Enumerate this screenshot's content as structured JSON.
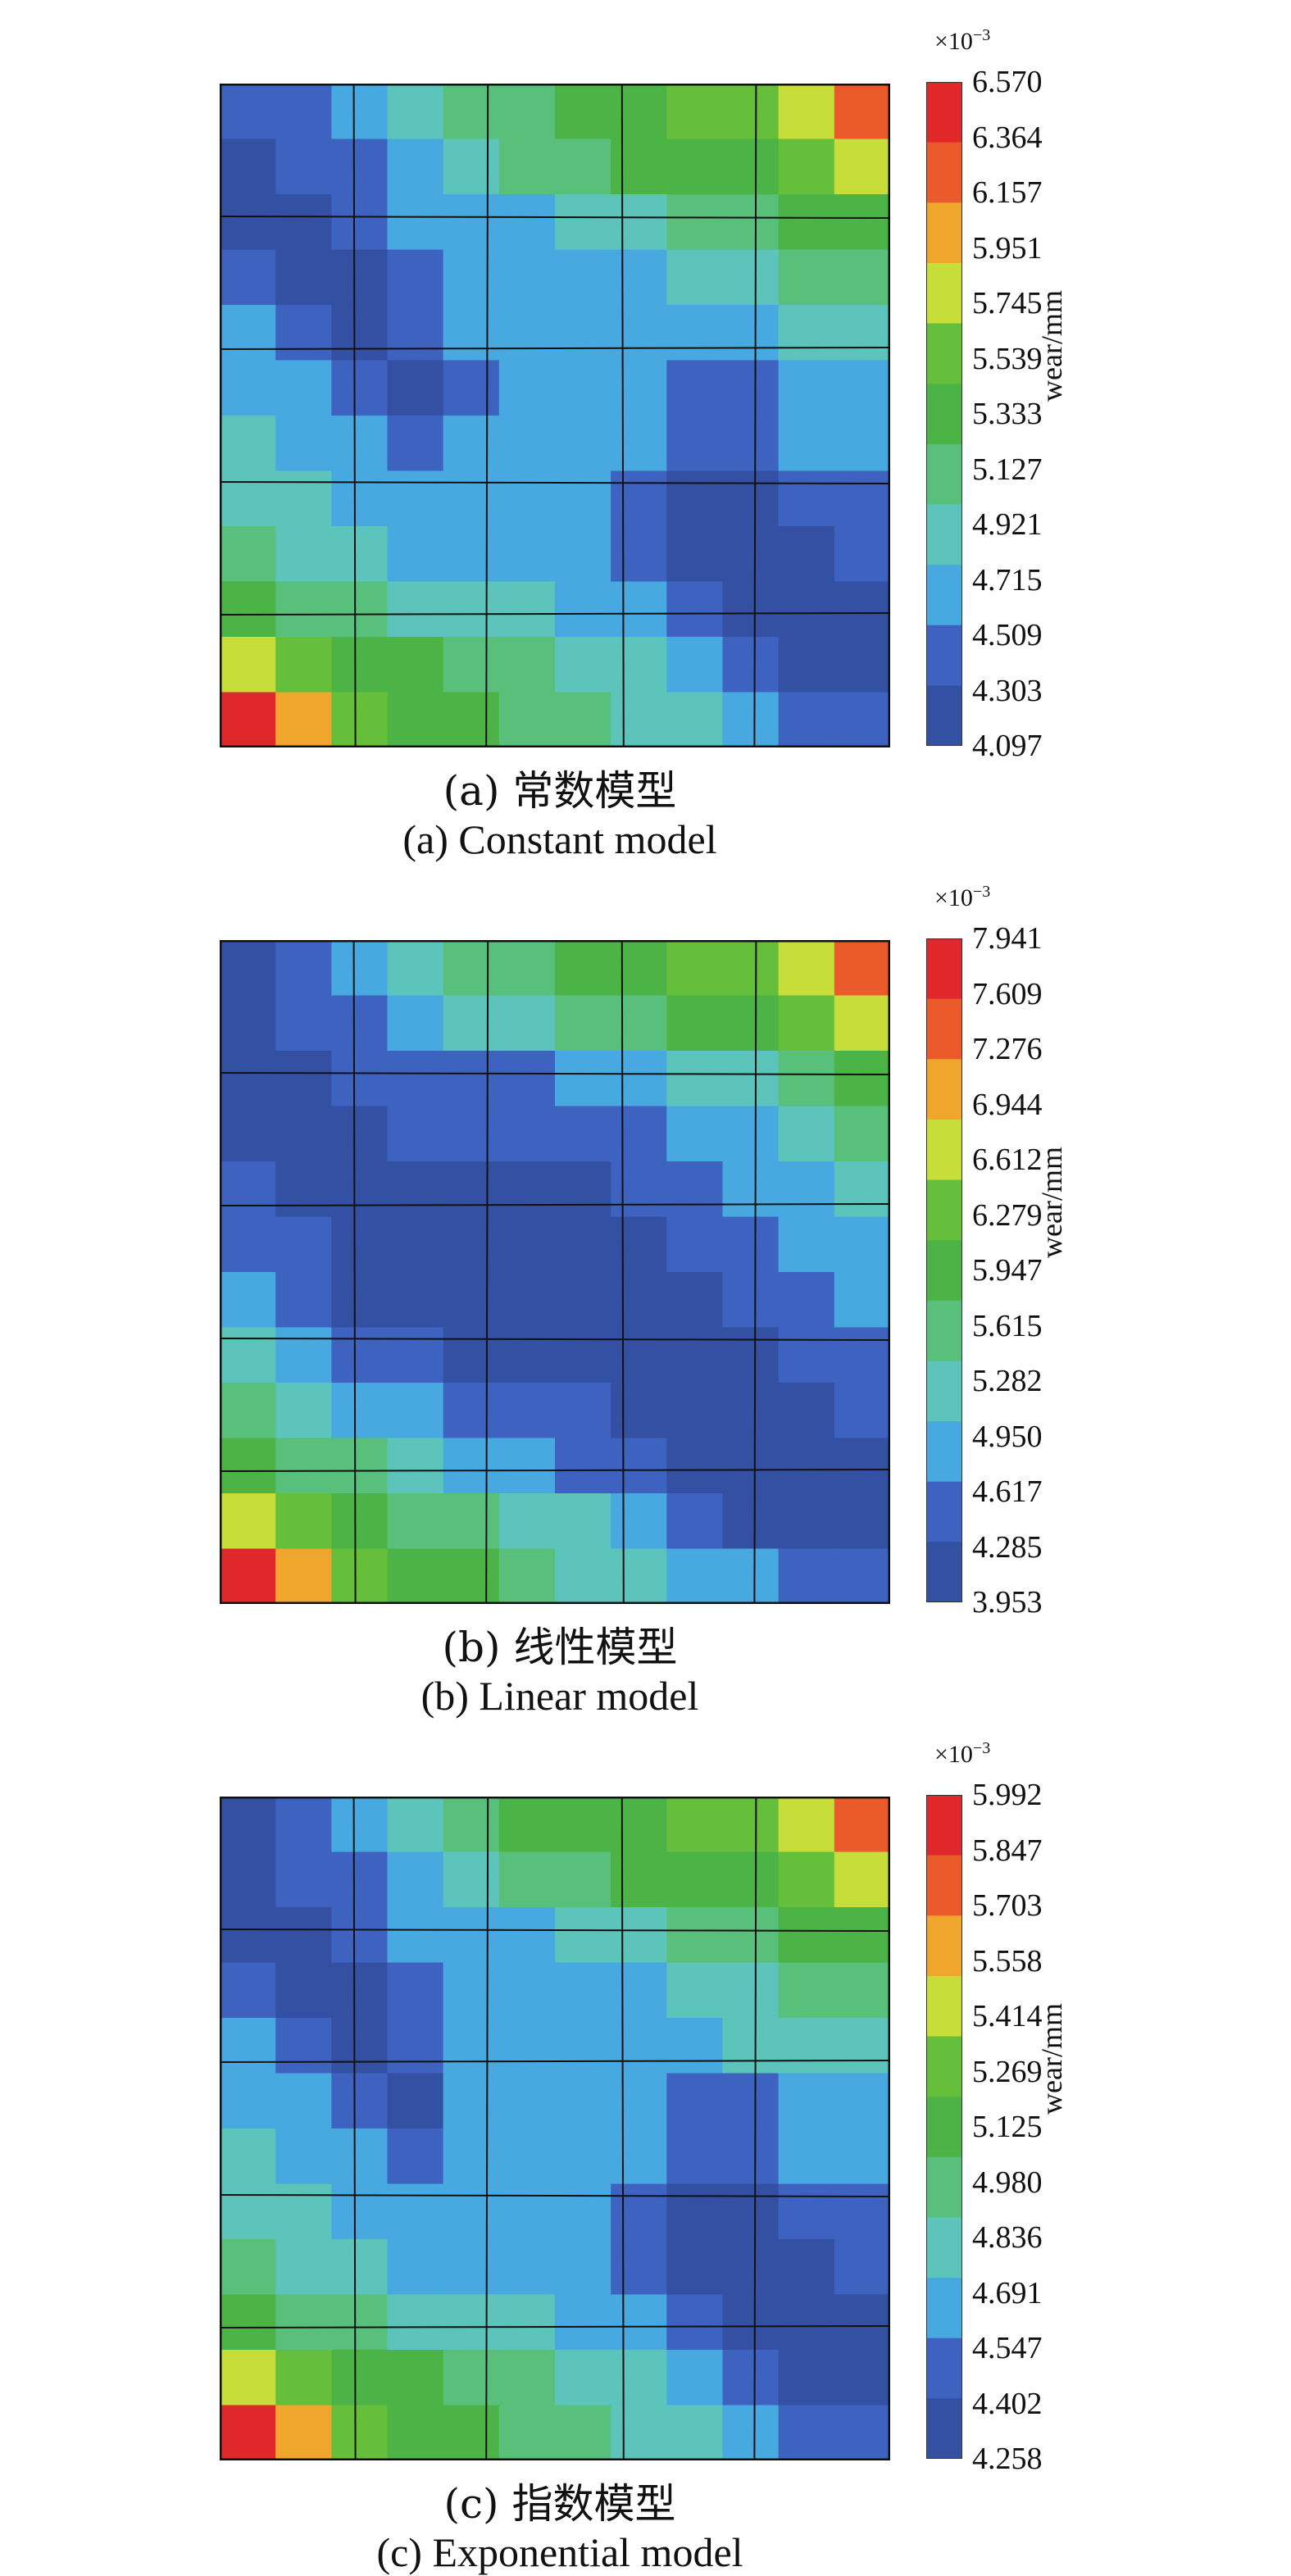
{
  "colors": [
    "#3350a3",
    "#3d62c0",
    "#47a9e0",
    "#5dc4bb",
    "#58c07a",
    "#4cb446",
    "#66bf3a",
    "#c7dd3a",
    "#f0a52c",
    "#ea5a2b",
    "#e0282b"
  ],
  "chart_data": [
    {
      "type": "heatmap",
      "caption_cn": "(a) 常数模型",
      "caption_en": "(a) Constant model",
      "colorbar_label": "wear/mm",
      "scale_exponent": "×10",
      "scale_power": "−3",
      "ticks": [
        "6.570",
        "6.364",
        "6.157",
        "5.951",
        "5.745",
        "5.539",
        "5.333",
        "5.127",
        "4.921",
        "4.715",
        "4.509",
        "4.303",
        "4.097"
      ],
      "grid": [
        [
          1,
          1,
          2,
          3,
          4,
          4,
          5,
          5,
          6,
          6,
          7,
          9
        ],
        [
          0,
          1,
          1,
          2,
          3,
          4,
          4,
          5,
          5,
          5,
          6,
          7
        ],
        [
          0,
          0,
          1,
          2,
          2,
          2,
          3,
          3,
          4,
          4,
          5,
          5
        ],
        [
          1,
          0,
          0,
          1,
          2,
          2,
          2,
          2,
          3,
          3,
          4,
          4
        ],
        [
          2,
          1,
          0,
          1,
          2,
          2,
          2,
          2,
          2,
          2,
          3,
          3
        ],
        [
          2,
          2,
          1,
          0,
          1,
          2,
          2,
          2,
          1,
          1,
          2,
          2
        ],
        [
          3,
          2,
          2,
          1,
          2,
          2,
          2,
          2,
          1,
          1,
          2,
          2
        ],
        [
          3,
          3,
          2,
          2,
          2,
          2,
          2,
          1,
          0,
          0,
          1,
          1
        ],
        [
          4,
          3,
          3,
          2,
          2,
          2,
          2,
          1,
          0,
          0,
          0,
          1
        ],
        [
          5,
          4,
          4,
          3,
          3,
          3,
          2,
          2,
          1,
          0,
          0,
          0
        ],
        [
          7,
          6,
          5,
          5,
          4,
          4,
          3,
          3,
          2,
          1,
          0,
          0
        ],
        [
          10,
          8,
          6,
          5,
          5,
          4,
          4,
          3,
          3,
          2,
          1,
          1
        ]
      ]
    },
    {
      "type": "heatmap",
      "caption_cn": "(b) 线性模型",
      "caption_en": "(b) Linear model",
      "colorbar_label": "wear/mm",
      "scale_exponent": "×10",
      "scale_power": "−3",
      "ticks": [
        "7.941",
        "7.609",
        "7.276",
        "6.944",
        "6.612",
        "6.279",
        "5.947",
        "5.615",
        "5.282",
        "4.950",
        "4.617",
        "4.285",
        "3.953"
      ],
      "grid": [
        [
          0,
          1,
          2,
          3,
          4,
          4,
          5,
          5,
          6,
          6,
          7,
          9
        ],
        [
          0,
          1,
          1,
          2,
          3,
          3,
          4,
          4,
          5,
          5,
          6,
          7
        ],
        [
          0,
          0,
          1,
          1,
          1,
          1,
          2,
          2,
          3,
          3,
          4,
          5
        ],
        [
          0,
          0,
          0,
          1,
          1,
          1,
          1,
          1,
          2,
          2,
          3,
          4
        ],
        [
          1,
          0,
          0,
          0,
          0,
          0,
          0,
          1,
          1,
          2,
          2,
          3
        ],
        [
          1,
          1,
          0,
          0,
          0,
          0,
          0,
          0,
          1,
          1,
          2,
          2
        ],
        [
          2,
          1,
          0,
          0,
          0,
          0,
          0,
          0,
          0,
          1,
          1,
          2
        ],
        [
          3,
          2,
          1,
          1,
          0,
          0,
          0,
          0,
          0,
          0,
          1,
          1
        ],
        [
          4,
          3,
          2,
          2,
          1,
          1,
          1,
          0,
          0,
          0,
          0,
          1
        ],
        [
          5,
          4,
          4,
          3,
          2,
          2,
          1,
          1,
          0,
          0,
          0,
          0
        ],
        [
          7,
          6,
          5,
          4,
          4,
          3,
          3,
          2,
          1,
          0,
          0,
          0
        ],
        [
          10,
          8,
          6,
          5,
          5,
          4,
          3,
          3,
          2,
          2,
          1,
          1
        ]
      ]
    },
    {
      "type": "heatmap",
      "caption_cn": "(c) 指数模型",
      "caption_en": "(c) Exponential model",
      "colorbar_label": "wear/mm",
      "scale_exponent": "×10",
      "scale_power": "−3",
      "ticks": [
        "5.992",
        "5.847",
        "5.703",
        "5.558",
        "5.414",
        "5.269",
        "5.125",
        "4.980",
        "4.836",
        "4.691",
        "4.547",
        "4.402",
        "4.258"
      ],
      "grid": [
        [
          0,
          1,
          2,
          3,
          4,
          5,
          5,
          5,
          6,
          6,
          7,
          9
        ],
        [
          0,
          1,
          1,
          2,
          3,
          4,
          4,
          5,
          5,
          5,
          6,
          7
        ],
        [
          0,
          0,
          1,
          2,
          2,
          2,
          3,
          3,
          4,
          4,
          5,
          5
        ],
        [
          1,
          0,
          0,
          1,
          2,
          2,
          2,
          2,
          3,
          3,
          4,
          4
        ],
        [
          2,
          1,
          0,
          1,
          2,
          2,
          2,
          2,
          2,
          3,
          3,
          3
        ],
        [
          2,
          2,
          1,
          0,
          2,
          2,
          2,
          2,
          1,
          1,
          2,
          2
        ],
        [
          3,
          2,
          2,
          1,
          2,
          2,
          2,
          2,
          1,
          1,
          2,
          2
        ],
        [
          3,
          3,
          2,
          2,
          2,
          2,
          2,
          1,
          0,
          0,
          1,
          1
        ],
        [
          4,
          3,
          3,
          2,
          2,
          2,
          2,
          1,
          0,
          0,
          0,
          1
        ],
        [
          5,
          4,
          4,
          3,
          3,
          3,
          2,
          2,
          1,
          0,
          0,
          0
        ],
        [
          7,
          6,
          5,
          5,
          4,
          4,
          3,
          3,
          2,
          1,
          0,
          0
        ],
        [
          10,
          8,
          6,
          5,
          5,
          4,
          4,
          3,
          3,
          2,
          1,
          1
        ]
      ]
    }
  ]
}
